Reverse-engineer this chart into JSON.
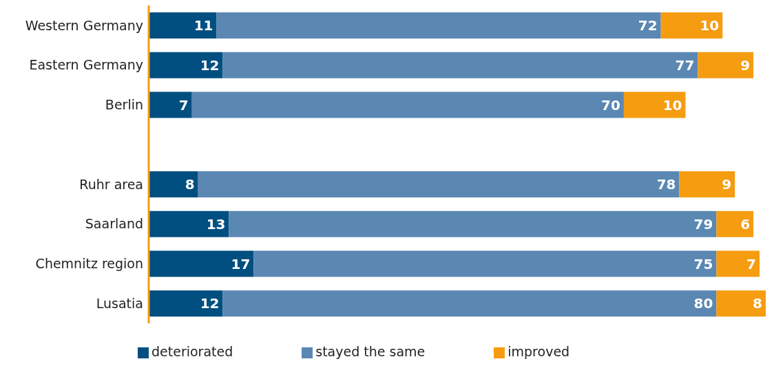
{
  "chart_data": {
    "type": "bar",
    "orientation": "horizontal",
    "stacked": true,
    "data_labels": true,
    "tick_labels": "y",
    "legend": "bottom",
    "xlim": [
      0,
      100
    ],
    "categories": [
      "Western Germany",
      "Eastern Germany",
      "Berlin",
      null,
      "Ruhr area",
      "Saarland",
      "Chemnitz region",
      "Lusatia"
    ],
    "series": [
      {
        "name": "deteriorated",
        "color": "#004f80",
        "values": [
          11,
          12,
          7,
          null,
          8,
          13,
          17,
          12
        ]
      },
      {
        "name": "stayed the same",
        "color": "#5b87b3",
        "values": [
          72,
          77,
          70,
          null,
          78,
          79,
          75,
          80
        ]
      },
      {
        "name": "improved",
        "color": "#f59c10",
        "values": [
          10,
          9,
          10,
          null,
          9,
          6,
          7,
          8
        ]
      }
    ]
  }
}
